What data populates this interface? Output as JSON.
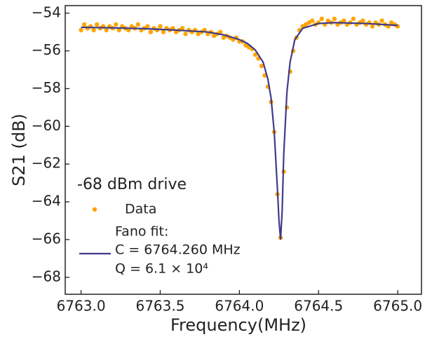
{
  "chart_data": {
    "type": "scatter",
    "xlabel": "Frequency(MHz)",
    "ylabel": "S21 (dB)",
    "legend_title": "-68 dBm drive",
    "legend_position": "lower left",
    "xlim": [
      6762.9,
      6765.15
    ],
    "ylim": [
      -68.9,
      -53.6
    ],
    "xticks": [
      {
        "value": 6763,
        "label": "6763.0"
      },
      {
        "value": 6763.5,
        "label": "6763.5"
      },
      {
        "value": 6764,
        "label": "6764.0"
      },
      {
        "value": 6764.5,
        "label": "6764.5"
      },
      {
        "value": 6765,
        "label": "6765.0"
      }
    ],
    "yticks": [
      {
        "value": -54,
        "label": "−54"
      },
      {
        "value": -56,
        "label": "−56"
      },
      {
        "value": -58,
        "label": "−58"
      },
      {
        "value": -60,
        "label": "−60"
      },
      {
        "value": -62,
        "label": "−62"
      },
      {
        "value": -64,
        "label": "−64"
      },
      {
        "value": -66,
        "label": "−66"
      },
      {
        "value": -68,
        "label": "−68"
      }
    ],
    "series": [
      {
        "name": "Data",
        "type": "scatter",
        "color": "#ffa500",
        "x": [
          6763.0,
          6763.02,
          6763.04,
          6763.06,
          6763.08,
          6763.1,
          6763.12,
          6763.14,
          6763.16,
          6763.18,
          6763.2,
          6763.22,
          6763.24,
          6763.26,
          6763.28,
          6763.3,
          6763.32,
          6763.34,
          6763.36,
          6763.38,
          6763.4,
          6763.42,
          6763.44,
          6763.46,
          6763.48,
          6763.5,
          6763.52,
          6763.54,
          6763.56,
          6763.58,
          6763.6,
          6763.62,
          6763.64,
          6763.66,
          6763.68,
          6763.7,
          6763.72,
          6763.74,
          6763.76,
          6763.78,
          6763.8,
          6763.82,
          6763.84,
          6763.86,
          6763.88,
          6763.9,
          6763.92,
          6763.94,
          6763.96,
          6763.98,
          6764.0,
          6764.02,
          6764.04,
          6764.06,
          6764.08,
          6764.1,
          6764.12,
          6764.14,
          6764.16,
          6764.18,
          6764.2,
          6764.22,
          6764.24,
          6764.26,
          6764.28,
          6764.3,
          6764.32,
          6764.34,
          6764.36,
          6764.38,
          6764.4,
          6764.42,
          6764.44,
          6764.46,
          6764.48,
          6764.5,
          6764.52,
          6764.54,
          6764.56,
          6764.58,
          6764.6,
          6764.62,
          6764.64,
          6764.66,
          6764.68,
          6764.7,
          6764.72,
          6764.74,
          6764.76,
          6764.78,
          6764.8,
          6764.82,
          6764.84,
          6764.86,
          6764.88,
          6764.9,
          6764.92,
          6764.94,
          6764.96,
          6764.98,
          6765.0
        ],
        "values": [
          -54.9,
          -54.6,
          -54.8,
          -54.7,
          -54.9,
          -54.6,
          -54.8,
          -54.7,
          -54.9,
          -54.7,
          -54.8,
          -54.6,
          -54.9,
          -54.7,
          -54.8,
          -54.9,
          -54.7,
          -54.8,
          -54.6,
          -54.9,
          -54.8,
          -54.7,
          -55.0,
          -54.8,
          -54.9,
          -54.7,
          -55.0,
          -54.8,
          -54.9,
          -54.8,
          -55.0,
          -54.9,
          -54.8,
          -55.1,
          -54.9,
          -55.0,
          -54.9,
          -55.1,
          -55.0,
          -54.9,
          -55.1,
          -55.0,
          -55.2,
          -55.1,
          -55.0,
          -55.3,
          -55.2,
          -55.3,
          -55.4,
          -55.3,
          -55.5,
          -55.5,
          -55.7,
          -55.8,
          -55.9,
          -56.2,
          -56.4,
          -56.8,
          -57.3,
          -57.9,
          -58.7,
          -60.3,
          -63.6,
          -65.9,
          -62.4,
          -59.0,
          -57.1,
          -56.0,
          -55.3,
          -54.9,
          -54.7,
          -54.6,
          -54.5,
          -54.4,
          -54.6,
          -54.5,
          -54.3,
          -54.6,
          -54.4,
          -54.5,
          -54.3,
          -54.6,
          -54.5,
          -54.4,
          -54.6,
          -54.5,
          -54.3,
          -54.6,
          -54.5,
          -54.4,
          -54.6,
          -54.5,
          -54.7,
          -54.5,
          -54.6,
          -54.4,
          -54.6,
          -54.7,
          -54.5,
          -54.6,
          -54.7
        ]
      },
      {
        "name": "Fano fit:",
        "type": "line",
        "color": "#3f3a8c",
        "fit_params": [
          "C = 6764.260 MHz",
          "Q = 6.1 × 10⁴"
        ],
        "x": [
          6763.0,
          6763.2,
          6763.4,
          6763.6,
          6763.8,
          6763.9,
          6764.0,
          6764.05,
          6764.1,
          6764.15,
          6764.18,
          6764.2,
          6764.22,
          6764.24,
          6764.25,
          6764.26,
          6764.27,
          6764.28,
          6764.3,
          6764.32,
          6764.35,
          6764.4,
          6764.5,
          6764.6,
          6764.8,
          6765.0
        ],
        "values": [
          -54.75,
          -54.78,
          -54.82,
          -54.9,
          -55.0,
          -55.15,
          -55.4,
          -55.6,
          -55.95,
          -56.6,
          -57.5,
          -58.5,
          -60.3,
          -63.3,
          -65.0,
          -66.0,
          -64.5,
          -61.5,
          -58.2,
          -56.6,
          -55.4,
          -54.8,
          -54.55,
          -54.5,
          -54.55,
          -54.65
        ]
      }
    ]
  }
}
